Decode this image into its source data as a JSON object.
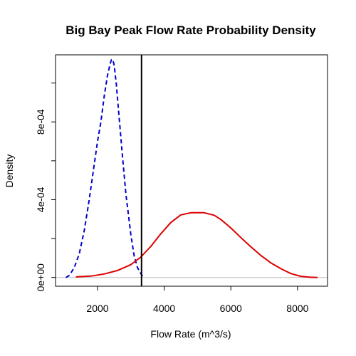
{
  "chart_data": {
    "type": "line",
    "title": "Big Bay Peak Flow Rate Probability Density",
    "xlabel": "Flow Rate (m^3/s)",
    "ylabel": "Density",
    "xlim": [
      740,
      8900
    ],
    "ylim": [
      -4.5e-05,
      0.001145
    ],
    "x_ticks": [
      {
        "value": 2000,
        "label": "2000"
      },
      {
        "value": 4000,
        "label": "4000"
      },
      {
        "value": 6000,
        "label": "6000"
      },
      {
        "value": 8000,
        "label": "8000"
      }
    ],
    "y_ticks": [
      {
        "value": 0,
        "label": "0e+00"
      },
      {
        "value": 0.0004,
        "label": "4e-04"
      },
      {
        "value": 0.0008,
        "label": "8e-04"
      }
    ],
    "y_minor_ticks": [
      0.0002,
      0.0006,
      0.001
    ],
    "baseline": {
      "value": 0,
      "color": "#bebebe"
    },
    "vline": {
      "x": 3320,
      "color": "#000000"
    },
    "series": [
      {
        "style": "dashed",
        "color": "#0000cd",
        "x": [
          1050,
          1150,
          1300,
          1450,
          1600,
          1750,
          1900,
          2000,
          2100,
          2200,
          2300,
          2380,
          2420,
          2460,
          2500,
          2560,
          2650,
          2750,
          2850,
          3000,
          3100,
          3200,
          3300,
          3380
        ],
        "y": [
          0.0,
          1e-05,
          5e-05,
          0.00012,
          0.00024,
          0.0004,
          0.00058,
          0.0007,
          0.0008,
          0.00093,
          0.00104,
          0.0011,
          0.00112,
          0.00112,
          0.00109,
          0.001,
          0.00082,
          0.00062,
          0.00043,
          0.00022,
          0.00011,
          5e-05,
          2e-05,
          0.0
        ]
      },
      {
        "style": "solid",
        "color": "#e00000",
        "x": [
          1350,
          1800,
          2200,
          2600,
          3000,
          3300,
          3600,
          3900,
          4200,
          4500,
          4800,
          5200,
          5500,
          5700,
          6000,
          6300,
          6600,
          6900,
          7200,
          7500,
          7800,
          8100,
          8350,
          8600
        ],
        "y": [
          3e-06,
          7e-06,
          1.8e-05,
          3.6e-05,
          6.6e-05,
          0.000105,
          0.00016,
          0.000225,
          0.000283,
          0.000322,
          0.000333,
          0.000333,
          0.00032,
          0.000298,
          0.000255,
          0.000205,
          0.000158,
          0.000113,
          7.5e-05,
          4.5e-05,
          2e-05,
          6e-06,
          2e-06,
          0.0
        ]
      }
    ]
  }
}
